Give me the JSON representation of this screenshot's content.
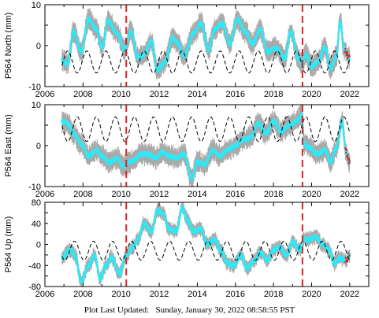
{
  "footer": {
    "label": "Plot Last Updated:",
    "date": "Sunday, January 30, 2022 08:58:55 PST"
  },
  "colors": {
    "data_band": "#a9a9a9",
    "data_line": "#2ee8f5",
    "recent_points": "#dd2222",
    "event_line": "#dd2222",
    "model_line": "#000000"
  },
  "chart_data": [
    {
      "type": "scatter",
      "ylabel": "P564 North (mm)",
      "xlim": [
        2006,
        2023
      ],
      "ylim": [
        -10,
        10
      ],
      "xticks": [
        2006,
        2008,
        2010,
        2012,
        2014,
        2016,
        2018,
        2020,
        2022
      ],
      "yticks": [
        -10,
        0,
        10
      ],
      "vertical_event_lines": [
        2010.27,
        2019.52
      ],
      "series": [
        {
          "style": "gps-daily",
          "x": [
            2006.9,
            2007.2,
            2007.5,
            2007.9,
            2008.3,
            2008.7,
            2009.0,
            2009.3,
            2009.8,
            2010.2,
            2010.5,
            2010.9,
            2011.2,
            2011.6,
            2011.9,
            2012.3,
            2012.7,
            2013.0,
            2013.3,
            2013.8,
            2014.2,
            2014.6,
            2014.9,
            2015.3,
            2015.7,
            2016.1,
            2016.5,
            2016.9,
            2017.3,
            2017.7,
            2018.1,
            2018.6,
            2018.9,
            2019.3,
            2019.5,
            2019.7,
            2020.0,
            2020.3,
            2020.7,
            2021.0,
            2021.3,
            2021.5,
            2021.7,
            2022.0
          ],
          "values": [
            -3.5,
            -4.5,
            3.5,
            -1.5,
            6.5,
            4.0,
            -0.5,
            6.0,
            3.0,
            -1.0,
            3.5,
            -3.0,
            -2.0,
            1.0,
            -6.0,
            -4.0,
            2.0,
            0.5,
            -2.5,
            3.0,
            5.5,
            -1.0,
            4.0,
            5.5,
            0.5,
            6.5,
            3.5,
            0.5,
            4.0,
            -1.5,
            -0.5,
            -3.0,
            3.5,
            -3.0,
            -4.5,
            -2.0,
            -5.0,
            -4.0,
            -0.5,
            -5.5,
            -2.5,
            6.0,
            -1.0,
            -3.0
          ],
          "error_band": 2.0
        },
        {
          "style": "model-seasonal",
          "offset": -4.0,
          "amplitude": 2.7,
          "period_years": 1.0,
          "peak_phase_year_fraction": 0.2
        }
      ]
    },
    {
      "type": "scatter",
      "ylabel": "P564 East (mm)",
      "xlim": [
        2006,
        2023
      ],
      "ylim": [
        -10,
        10
      ],
      "xticks": [
        2006,
        2008,
        2010,
        2012,
        2014,
        2016,
        2018,
        2020,
        2022
      ],
      "yticks": [
        -10,
        0,
        10
      ],
      "vertical_event_lines": [
        2010.27,
        2019.52
      ],
      "series": [
        {
          "style": "gps-daily",
          "x": [
            2006.9,
            2007.2,
            2007.5,
            2007.9,
            2008.3,
            2008.7,
            2009.0,
            2009.4,
            2009.8,
            2010.1,
            2010.4,
            2010.7,
            2011.0,
            2011.4,
            2011.8,
            2012.2,
            2012.5,
            2012.9,
            2013.3,
            2013.7,
            2014.0,
            2014.4,
            2014.8,
            2015.2,
            2015.6,
            2016.0,
            2016.4,
            2016.8,
            2017.2,
            2017.6,
            2018.0,
            2018.4,
            2018.8,
            2019.2,
            2019.5,
            2019.6,
            2019.9,
            2020.3,
            2020.7,
            2021.0,
            2021.3,
            2021.6,
            2021.8,
            2022.0
          ],
          "values": [
            6.0,
            5.5,
            3.0,
            0.5,
            -2.5,
            -1.0,
            -2.5,
            -4.0,
            -3.0,
            -5.0,
            -4.0,
            -3.5,
            -2.0,
            -2.0,
            -3.0,
            -1.5,
            -2.5,
            -3.0,
            -2.0,
            -8.0,
            -4.0,
            -4.5,
            -1.0,
            -2.5,
            -1.0,
            0.0,
            1.5,
            2.0,
            5.5,
            3.0,
            6.0,
            3.5,
            5.0,
            6.0,
            7.5,
            0.5,
            -0.5,
            -2.0,
            -1.0,
            -4.0,
            -0.5,
            6.0,
            -1.5,
            -4.0
          ],
          "error_band": 2.0
        },
        {
          "style": "model-seasonal",
          "offset": 4.0,
          "amplitude": 3.0,
          "period_years": 1.0,
          "peak_phase_year_fraction": 0.7
        }
      ]
    },
    {
      "type": "scatter",
      "ylabel": "P564 Up (mm)",
      "xlim": [
        2006,
        2023
      ],
      "ylim": [
        -80,
        80
      ],
      "xticks": [
        2006,
        2008,
        2010,
        2012,
        2014,
        2016,
        2018,
        2020,
        2022
      ],
      "yticks": [
        -80,
        -40,
        0,
        40,
        80
      ],
      "vertical_event_lines": [
        2010.27,
        2019.52
      ],
      "series": [
        {
          "style": "gps-daily",
          "x": [
            2006.9,
            2007.3,
            2007.6,
            2007.9,
            2008.3,
            2008.6,
            2008.9,
            2009.2,
            2009.5,
            2009.9,
            2010.3,
            2010.6,
            2010.9,
            2011.2,
            2011.6,
            2011.9,
            2012.2,
            2012.5,
            2012.9,
            2013.2,
            2013.5,
            2013.8,
            2014.2,
            2014.5,
            2014.9,
            2015.2,
            2015.6,
            2015.9,
            2016.3,
            2016.6,
            2017.0,
            2017.3,
            2017.7,
            2018.0,
            2018.3,
            2018.7,
            2019.0,
            2019.4,
            2019.6,
            2019.9,
            2020.2,
            2020.6,
            2020.9,
            2021.2,
            2021.5,
            2021.8,
            2022.0
          ],
          "values": [
            -25,
            -10,
            -22,
            -70,
            -40,
            -20,
            -65,
            -40,
            -25,
            -55,
            -20,
            -5,
            10,
            40,
            25,
            65,
            60,
            30,
            25,
            70,
            45,
            25,
            30,
            0,
            10,
            -10,
            -35,
            -40,
            -20,
            -45,
            -30,
            -15,
            -30,
            -10,
            -5,
            -20,
            5,
            -10,
            10,
            10,
            15,
            0,
            -10,
            -35,
            -25,
            -30,
            -20
          ],
          "error_band": 10
        },
        {
          "style": "model-seasonal",
          "offset": -12,
          "amplitude": 18,
          "period_years": 1.0,
          "peak_phase_year_fraction": 0.55
        }
      ]
    }
  ]
}
